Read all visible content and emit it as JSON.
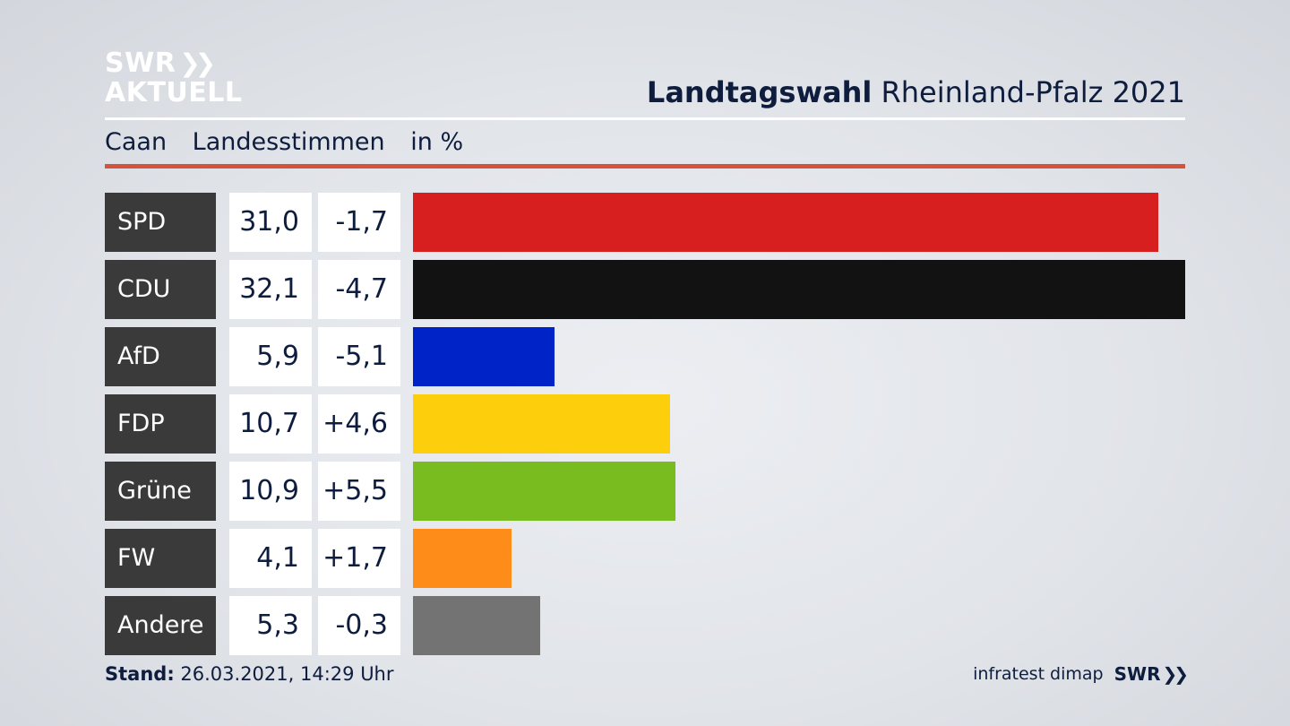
{
  "brand": {
    "line1": "SWR",
    "line2": "AKTUELL"
  },
  "header": {
    "title_bold": "Landtagswahl",
    "title_rest": "Rheinland-Pfalz 2021"
  },
  "subheader": {
    "location": "Caan",
    "category": "Landesstimmen",
    "unit": "in %"
  },
  "chart_data": {
    "type": "bar",
    "orientation": "horizontal",
    "unit": "in %",
    "xlim": [
      0,
      32.1
    ],
    "rows": [
      {
        "party": "SPD",
        "value": 31.0,
        "value_label": "31,0",
        "diff": -1.7,
        "diff_label": "-1,7",
        "color": "#d71f1f"
      },
      {
        "party": "CDU",
        "value": 32.1,
        "value_label": "32,1",
        "diff": -4.7,
        "diff_label": "-4,7",
        "color": "#121212"
      },
      {
        "party": "AfD",
        "value": 5.9,
        "value_label": "5,9",
        "diff": -5.1,
        "diff_label": "-5,1",
        "color": "#0023c8"
      },
      {
        "party": "FDP",
        "value": 10.7,
        "value_label": "10,7",
        "diff": 4.6,
        "diff_label": "+4,6",
        "color": "#fcce0b"
      },
      {
        "party": "Grüne",
        "value": 10.9,
        "value_label": "10,9",
        "diff": 5.5,
        "diff_label": "+5,5",
        "color": "#79bc1f"
      },
      {
        "party": "FW",
        "value": 4.1,
        "value_label": "4,1",
        "diff": 1.7,
        "diff_label": "+1,7",
        "color": "#fd8c18"
      },
      {
        "party": "Andere",
        "value": 5.3,
        "value_label": "5,3",
        "diff": -0.3,
        "diff_label": "-0,3",
        "color": "#737373"
      }
    ]
  },
  "footer": {
    "stand_label": "Stand:",
    "stand_value": "26.03.2021, 14:29 Uhr",
    "source": "infratest dimap",
    "brand": "SWR"
  }
}
